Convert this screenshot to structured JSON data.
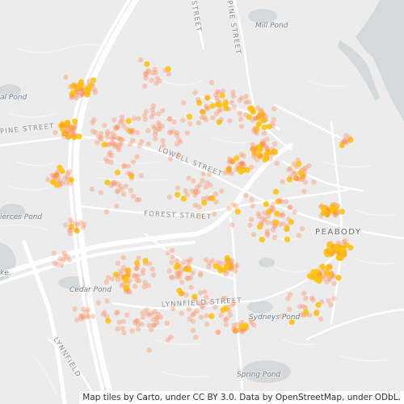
{
  "map": {
    "attribution": "Map tiles by Carto, under CC BY 3.0. Data by OpenStreetMap, under ODbL.",
    "colors": {
      "background": "#ececec",
      "water": "#d4dadc",
      "road": "#ffffff",
      "minor_road": "#f6f6f6",
      "point_outer": "#ff8a5c",
      "point_inner": "#ffc107"
    },
    "places": {
      "mill_pond": "Mill Pond",
      "al_pond": "al Pond",
      "pine_street_north": "PINE STREET",
      "pine_street_west": "PINE STREET",
      "lowell_street": "LOWELL STREET",
      "forest_street": "FOREST STREET",
      "ierces_pond": "ierces Pond",
      "peabody": "PEABODY",
      "cedar_pond": "Cedar Pond",
      "lynnfield_street": "LYNNFIELD STREET",
      "sydneys_pond": "Sydneys Pond",
      "spring_pond": "Spring Pond",
      "lynnfield_sw": "LYNNFIELD",
      "street_nw": "STREET",
      "ke": "ke"
    }
  }
}
